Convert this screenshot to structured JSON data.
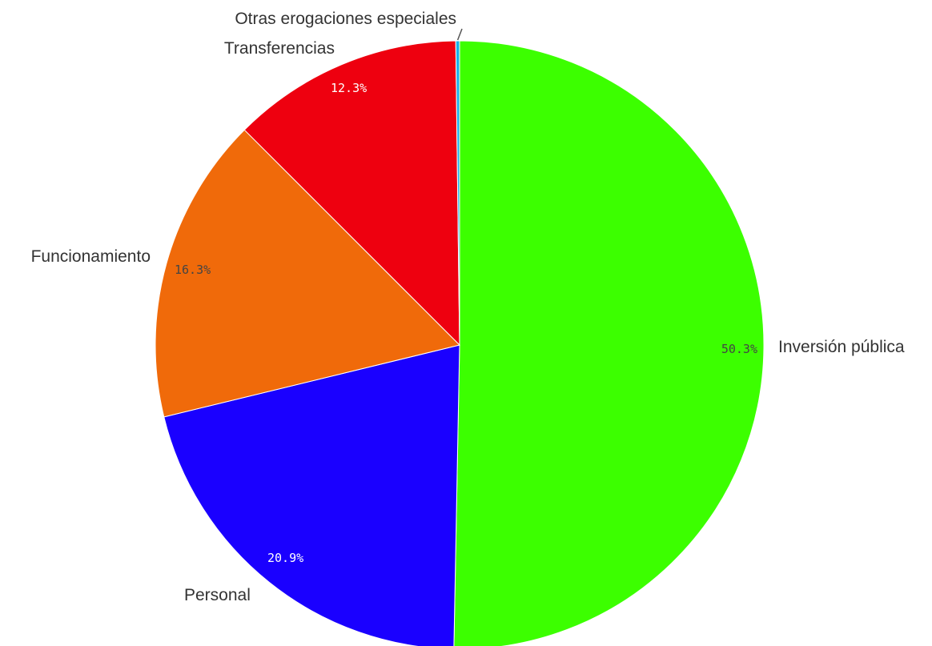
{
  "chart_data": {
    "type": "pie",
    "title": "",
    "start_angle_deg": 0,
    "direction": "clockwise",
    "slices": [
      {
        "label": "Inversión pública",
        "value": 50.3,
        "display": "50.3%",
        "color": "#3cff00",
        "label_color": "#444444"
      },
      {
        "label": "Personal",
        "value": 20.9,
        "display": "20.9%",
        "color": "#1a00ff",
        "label_color": "#ffffff"
      },
      {
        "label": "Funcionamiento",
        "value": 16.3,
        "display": "16.3%",
        "color": "#f06a0a",
        "label_color": "#444444"
      },
      {
        "label": "Transferencias",
        "value": 12.3,
        "display": "12.3%",
        "color": "#ee000f",
        "label_color": "#ffffff"
      },
      {
        "label": "Otras erogaciones especiales",
        "value": 0.2,
        "display": "",
        "color": "#1ab0e8",
        "label_color": "#444444"
      }
    ]
  }
}
